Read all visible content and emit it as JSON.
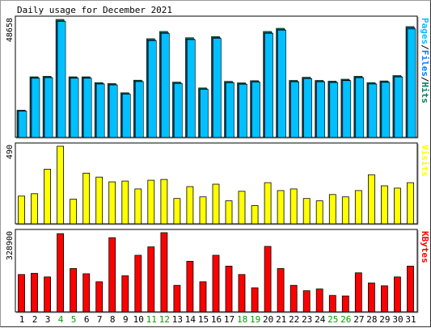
{
  "title": "Daily usage for December 2021",
  "colors": {
    "hits": "#00805c",
    "files": "#0080ff",
    "pages": "#00c0ff",
    "visits": "#ffff00",
    "kbytes": "#ff0000",
    "weekday": "#000000",
    "weekend": "#00a000"
  },
  "chart_data": [
    {
      "type": "bar",
      "title": "",
      "ylabel": "Pages/Files/Hits",
      "ytick": "48658",
      "ylim": [
        0,
        48658
      ],
      "categories": [
        "1",
        "2",
        "3",
        "4",
        "5",
        "6",
        "7",
        "8",
        "9",
        "10",
        "11",
        "12",
        "13",
        "14",
        "15",
        "16",
        "17",
        "18",
        "19",
        "20",
        "21",
        "22",
        "23",
        "24",
        "25",
        "26",
        "27",
        "28",
        "29",
        "30",
        "31"
      ],
      "series": [
        {
          "name": "Hits",
          "values": [
            11200,
            25000,
            25200,
            48658,
            25000,
            25000,
            22600,
            22200,
            18400,
            23600,
            40700,
            43700,
            22800,
            41100,
            20400,
            41600,
            23100,
            22500,
            23400,
            43700,
            45000,
            23500,
            24800,
            23500,
            23200,
            24000,
            25200,
            22600,
            23300,
            25500,
            45700
          ]
        },
        {
          "name": "Files",
          "values": [
            11000,
            24600,
            24800,
            48000,
            24600,
            24600,
            22200,
            21800,
            18000,
            23200,
            40200,
            43200,
            22400,
            40600,
            20000,
            41100,
            22700,
            22100,
            23000,
            43200,
            44500,
            23100,
            24400,
            23100,
            22800,
            23600,
            24800,
            22200,
            22900,
            25100,
            45200
          ]
        },
        {
          "name": "Pages",
          "values": [
            10800,
            24400,
            24600,
            47800,
            24400,
            24400,
            22000,
            21600,
            17800,
            23000,
            39900,
            42900,
            22200,
            40300,
            19800,
            40800,
            22500,
            21900,
            22800,
            42900,
            44200,
            22900,
            24200,
            22900,
            22600,
            23400,
            24600,
            22000,
            22700,
            24900,
            44700
          ]
        }
      ]
    },
    {
      "type": "bar",
      "title": "",
      "ylabel": "Visits",
      "ytick": "490",
      "ylim": [
        0,
        490
      ],
      "categories": [
        "1",
        "2",
        "3",
        "4",
        "5",
        "6",
        "7",
        "8",
        "9",
        "10",
        "11",
        "12",
        "13",
        "14",
        "15",
        "16",
        "17",
        "18",
        "19",
        "20",
        "21",
        "22",
        "23",
        "24",
        "25",
        "26",
        "27",
        "28",
        "29",
        "30",
        "31"
      ],
      "series": [
        {
          "name": "Visits",
          "values": [
            175,
            190,
            345,
            490,
            155,
            320,
            295,
            265,
            270,
            220,
            275,
            280,
            160,
            235,
            170,
            250,
            145,
            205,
            115,
            260,
            210,
            220,
            160,
            145,
            185,
            170,
            210,
            310,
            240,
            225,
            260
          ]
        }
      ]
    },
    {
      "type": "bar",
      "title": "",
      "ylabel": "KBytes",
      "ytick": "328900",
      "ylim": [
        0,
        328900
      ],
      "categories": [
        "1",
        "2",
        "3",
        "4",
        "5",
        "6",
        "7",
        "8",
        "9",
        "10",
        "11",
        "12",
        "13",
        "14",
        "15",
        "16",
        "17",
        "18",
        "19",
        "20",
        "21",
        "22",
        "23",
        "24",
        "25",
        "26",
        "27",
        "28",
        "29",
        "30",
        "31"
      ],
      "series": [
        {
          "name": "KBytes",
          "values": [
            155000,
            160000,
            145000,
            325000,
            180000,
            158000,
            125000,
            308000,
            150000,
            235000,
            270000,
            328900,
            110000,
            210000,
            125000,
            235000,
            190000,
            155000,
            100000,
            272000,
            180000,
            110000,
            88000,
            95000,
            68000,
            66000,
            162000,
            120000,
            108000,
            145000,
            190000
          ]
        }
      ]
    }
  ],
  "x_days": [
    {
      "label": "1",
      "weekend": false
    },
    {
      "label": "2",
      "weekend": false
    },
    {
      "label": "3",
      "weekend": false
    },
    {
      "label": "4",
      "weekend": true
    },
    {
      "label": "5",
      "weekend": true
    },
    {
      "label": "6",
      "weekend": false
    },
    {
      "label": "7",
      "weekend": false
    },
    {
      "label": "8",
      "weekend": false
    },
    {
      "label": "9",
      "weekend": false
    },
    {
      "label": "10",
      "weekend": false
    },
    {
      "label": "11",
      "weekend": true
    },
    {
      "label": "12",
      "weekend": true
    },
    {
      "label": "13",
      "weekend": false
    },
    {
      "label": "14",
      "weekend": false
    },
    {
      "label": "15",
      "weekend": false
    },
    {
      "label": "16",
      "weekend": false
    },
    {
      "label": "17",
      "weekend": false
    },
    {
      "label": "18",
      "weekend": true
    },
    {
      "label": "19",
      "weekend": true
    },
    {
      "label": "20",
      "weekend": false
    },
    {
      "label": "21",
      "weekend": false
    },
    {
      "label": "22",
      "weekend": false
    },
    {
      "label": "23",
      "weekend": false
    },
    {
      "label": "24",
      "weekend": false
    },
    {
      "label": "25",
      "weekend": true
    },
    {
      "label": "26",
      "weekend": true
    },
    {
      "label": "27",
      "weekend": false
    },
    {
      "label": "28",
      "weekend": false
    },
    {
      "label": "29",
      "weekend": false
    },
    {
      "label": "30",
      "weekend": false
    },
    {
      "label": "31",
      "weekend": false
    }
  ]
}
